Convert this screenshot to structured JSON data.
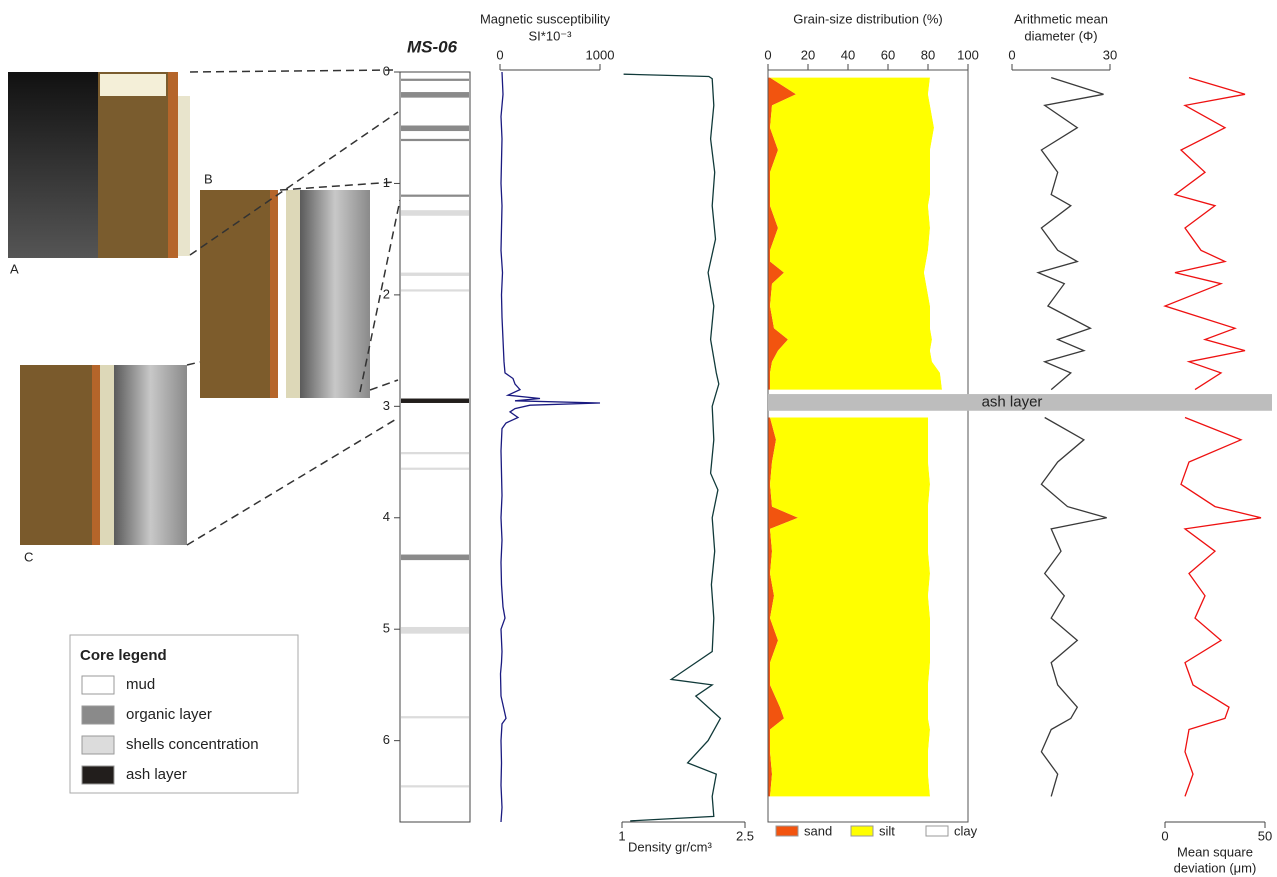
{
  "core_photos": {
    "labels": [
      "A",
      "B",
      "C"
    ]
  },
  "core_legend": {
    "title": "Core legend",
    "items": [
      {
        "name": "mud",
        "color": "#ffffff"
      },
      {
        "name": "organic layer",
        "color": "#8a8a8a",
        "intervals": [
          [
            0.06,
            0.08
          ],
          [
            0.18,
            0.23
          ],
          [
            0.48,
            0.53
          ],
          [
            0.6,
            0.62
          ],
          [
            1.1,
            1.12
          ],
          [
            4.33,
            4.38
          ]
        ]
      },
      {
        "name": "shells concentration",
        "color": "#dcdcdc",
        "intervals": [
          [
            1.24,
            1.29
          ],
          [
            1.8,
            1.83
          ],
          [
            1.95,
            1.97
          ],
          [
            3.41,
            3.43
          ],
          [
            3.55,
            3.57
          ],
          [
            4.98,
            5.04
          ],
          [
            5.78,
            5.8
          ],
          [
            6.4,
            6.42
          ]
        ]
      },
      {
        "name": "ash layer",
        "color": "#221e1c",
        "intervals": [
          [
            2.93,
            2.97
          ]
        ]
      }
    ]
  },
  "chart_data": [
    {
      "type": "core",
      "title": "MS-06",
      "ylim": [
        0,
        6.73
      ],
      "yticks": [
        0,
        1,
        2,
        3,
        4,
        5,
        6
      ]
    },
    {
      "type": "line",
      "title": "Magnetic susceptibility",
      "subtitle": "SI*10⁻³",
      "axis_side": "top",
      "color": "#1a1a80",
      "xlim": [
        0,
        1000
      ],
      "xticks": [
        0,
        1000
      ],
      "depth": [
        0.0,
        0.2,
        0.4,
        0.6,
        0.8,
        1.0,
        1.2,
        1.4,
        1.6,
        1.8,
        2.0,
        2.2,
        2.4,
        2.6,
        2.7,
        2.75,
        2.8,
        2.85,
        2.9,
        2.93,
        2.95,
        2.97,
        2.99,
        3.02,
        3.05,
        3.1,
        3.15,
        3.2,
        3.4,
        3.6,
        3.8,
        4.0,
        4.2,
        4.4,
        4.6,
        4.8,
        4.9,
        5.0,
        5.2,
        5.3,
        5.4,
        5.6,
        5.8,
        5.85,
        6.0,
        6.2,
        6.4,
        6.6,
        6.73
      ],
      "values": [
        20,
        30,
        10,
        20,
        15,
        10,
        20,
        15,
        10,
        25,
        15,
        20,
        30,
        40,
        50,
        130,
        150,
        200,
        80,
        400,
        150,
        1000,
        300,
        150,
        100,
        180,
        60,
        20,
        10,
        15,
        20,
        10,
        20,
        10,
        15,
        30,
        50,
        10,
        20,
        15,
        5,
        10,
        60,
        20,
        10,
        15,
        10,
        20,
        10
      ]
    },
    {
      "type": "line",
      "xlabel": [
        "Density gr/cm³"
      ],
      "axis_side": "bottom",
      "color": "#113a3a",
      "xlim": [
        1,
        2.5
      ],
      "xticks": [
        1,
        2.5
      ],
      "depth": [
        0.02,
        0.04,
        0.06,
        0.3,
        0.6,
        0.9,
        1.2,
        1.5,
        1.8,
        2.1,
        2.4,
        2.7,
        2.8,
        3.0,
        3.3,
        3.6,
        3.75,
        4.0,
        4.3,
        4.6,
        4.9,
        5.2,
        5.45,
        5.5,
        5.6,
        5.8,
        6.0,
        6.2,
        6.3,
        6.5,
        6.68,
        6.72
      ],
      "values": [
        1.02,
        2.06,
        2.1,
        2.12,
        2.08,
        2.13,
        2.1,
        2.14,
        2.05,
        2.12,
        2.08,
        2.15,
        2.18,
        2.1,
        2.12,
        2.08,
        2.17,
        2.1,
        2.13,
        2.09,
        2.12,
        2.1,
        1.6,
        2.1,
        1.9,
        2.2,
        2.05,
        1.8,
        2.15,
        2.1,
        2.12,
        1.1
      ]
    },
    {
      "type": "stacked_area",
      "title": "Grain-size distribution (%)",
      "axis_side": "top",
      "xlim": [
        0,
        100
      ],
      "xticks": [
        0,
        20,
        40,
        60,
        80,
        100
      ],
      "annotation": {
        "text": "ash layer",
        "depth": [
          2.89,
          3.04
        ]
      },
      "depth": [
        0.05,
        0.2,
        0.3,
        0.5,
        0.7,
        0.9,
        1.1,
        1.2,
        1.4,
        1.6,
        1.7,
        1.8,
        1.9,
        2.1,
        2.3,
        2.4,
        2.5,
        2.6,
        2.7,
        2.85,
        null,
        3.1,
        3.3,
        3.5,
        3.7,
        3.9,
        4.0,
        4.1,
        4.3,
        4.5,
        4.7,
        4.9,
        5.1,
        5.3,
        5.5,
        5.7,
        5.8,
        5.9,
        6.1,
        6.3,
        6.5
      ],
      "series": [
        {
          "name": "sand",
          "color": "#f2540f",
          "values": [
            1,
            14,
            2,
            1,
            5,
            1,
            1,
            1,
            5,
            1,
            1,
            8,
            2,
            1,
            3,
            10,
            5,
            2,
            1,
            1,
            null,
            1,
            4,
            2,
            1,
            2,
            15,
            1,
            2,
            1,
            3,
            1,
            5,
            1,
            1,
            6,
            8,
            1,
            1,
            2,
            1
          ]
        },
        {
          "name": "silt",
          "color": "#ffff00",
          "values": [
            80,
            66,
            79,
            82,
            76,
            80,
            80,
            79,
            76,
            79,
            78,
            70,
            77,
            80,
            78,
            72,
            76,
            80,
            85,
            86,
            null,
            79,
            76,
            78,
            80,
            78,
            65,
            79,
            78,
            80,
            77,
            80,
            76,
            80,
            79,
            74,
            72,
            80,
            79,
            78,
            80
          ]
        },
        {
          "name": "clay",
          "color": "#ffffff",
          "values": [
            19,
            20,
            19,
            17,
            19,
            19,
            19,
            20,
            19,
            20,
            21,
            22,
            21,
            19,
            19,
            18,
            19,
            18,
            14,
            13,
            null,
            20,
            20,
            20,
            19,
            20,
            20,
            20,
            20,
            19,
            20,
            19,
            19,
            19,
            20,
            20,
            20,
            19,
            20,
            20,
            19
          ]
        }
      ]
    },
    {
      "type": "line",
      "xlabel": [
        "Arithmetic mean",
        "diameter (Φ)"
      ],
      "axis_side": "top",
      "color": "#3a3a3a",
      "xlim": [
        0,
        30
      ],
      "xticks": [
        0,
        30
      ],
      "depth": [
        0.05,
        0.2,
        0.3,
        0.5,
        0.7,
        0.9,
        1.1,
        1.2,
        1.4,
        1.6,
        1.7,
        1.8,
        1.9,
        2.1,
        2.3,
        2.4,
        2.5,
        2.6,
        2.7,
        2.85,
        null,
        3.1,
        3.3,
        3.5,
        3.7,
        3.9,
        4.0,
        4.1,
        4.3,
        4.5,
        4.7,
        4.9,
        5.1,
        5.3,
        5.5,
        5.7,
        5.8,
        5.9,
        6.1,
        6.3,
        6.5
      ],
      "values": [
        12,
        28,
        10,
        20,
        9,
        14,
        12,
        18,
        9,
        14,
        20,
        8,
        16,
        11,
        24,
        14,
        22,
        10,
        18,
        12,
        null,
        10,
        22,
        14,
        9,
        17,
        29,
        12,
        15,
        10,
        16,
        12,
        20,
        12,
        14,
        20,
        18,
        12,
        9,
        14,
        12
      ]
    },
    {
      "type": "line",
      "xlabel": [
        "Mean square",
        "deviation (μm)"
      ],
      "axis_side": "bottom",
      "color": "#ee1111",
      "xlim": [
        0,
        50
      ],
      "xticks": [
        0,
        50
      ],
      "depth": [
        0.05,
        0.2,
        0.3,
        0.5,
        0.7,
        0.9,
        1.1,
        1.2,
        1.4,
        1.6,
        1.7,
        1.8,
        1.9,
        2.1,
        2.3,
        2.4,
        2.5,
        2.6,
        2.7,
        2.85,
        null,
        3.1,
        3.3,
        3.5,
        3.7,
        3.9,
        4.0,
        4.1,
        4.3,
        4.5,
        4.7,
        4.9,
        5.1,
        5.3,
        5.5,
        5.7,
        5.8,
        5.9,
        6.1,
        6.3,
        6.5
      ],
      "values": [
        12,
        40,
        10,
        30,
        8,
        20,
        5,
        25,
        10,
        18,
        30,
        5,
        28,
        0,
        35,
        20,
        40,
        12,
        28,
        15,
        null,
        10,
        38,
        12,
        8,
        25,
        48,
        10,
        25,
        12,
        20,
        15,
        28,
        10,
        14,
        32,
        30,
        12,
        10,
        14,
        10
      ]
    }
  ]
}
